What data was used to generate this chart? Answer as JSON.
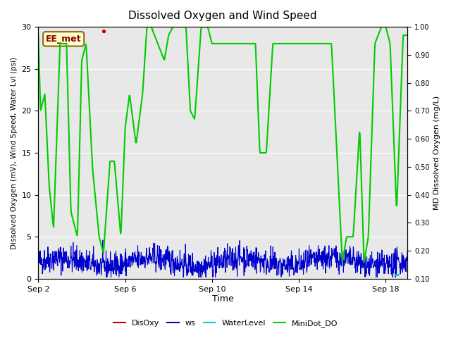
{
  "title": "Dissolved Oxygen and Wind Speed",
  "ylabel_left": "Dissolved Oxygen (mV), Wind Speed, Water Lvl (psi)",
  "ylabel_right": "MD Dissolved Oxygen (mg/L)",
  "xlabel": "Time",
  "ylim_left": [
    0,
    30
  ],
  "ylim_right": [
    0.1,
    1.0
  ],
  "annotation_box": "EE_met",
  "bg_color": "#e8e8e8",
  "plot_bg": "#e8e8e8",
  "x_ticks": [
    "Sep 2",
    "Sep 6",
    "Sep 10",
    "Sep 14",
    "Sep 18"
  ],
  "legend_labels": [
    "DisOxy",
    "ws",
    "WaterLevel",
    "MiniDot_DO"
  ],
  "legend_colors": [
    "red",
    "blue",
    "cyan",
    "lime"
  ],
  "colors": {
    "DisOxy": "#cc0000",
    "ws": "#0000cc",
    "WaterLevel": "#00cccc",
    "MiniDot_DO": "#00cc00"
  }
}
